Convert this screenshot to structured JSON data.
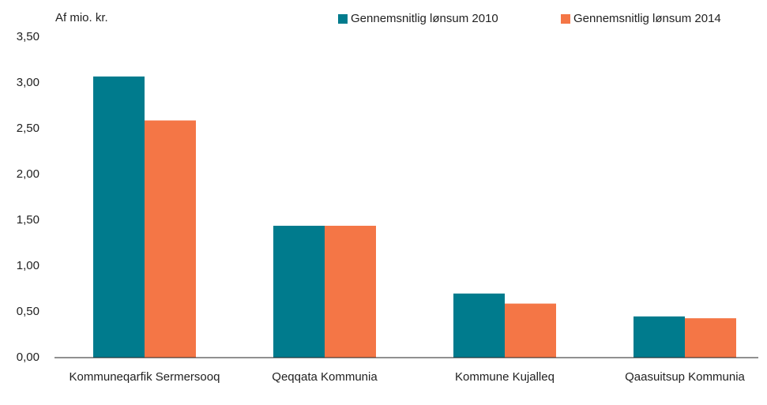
{
  "chart_data": {
    "type": "bar",
    "y_label": "Af mio. kr.",
    "categories": [
      "Kommuneqarfik Sermersooq",
      "Qeqqata Kommunia",
      "Kommune Kujalleq",
      "Qaasuitsup Kommunia"
    ],
    "series": [
      {
        "name": "Gennemsnitlig lønsum 2010",
        "color": "#007b8d",
        "values": [
          3.07,
          1.44,
          0.7,
          0.45
        ]
      },
      {
        "name": "Gennemsnitlig lønsum 2014",
        "color": "#f47646",
        "values": [
          2.59,
          1.44,
          0.59,
          0.43
        ]
      }
    ],
    "ylim": [
      0,
      3.5
    ],
    "yticks": [
      {
        "value": 0,
        "label": "0,00"
      },
      {
        "value": 0.5,
        "label": "0,50"
      },
      {
        "value": 1,
        "label": "1,00"
      },
      {
        "value": 1.5,
        "label": "1,50"
      },
      {
        "value": 2,
        "label": "2,00"
      },
      {
        "value": 2.5,
        "label": "2,50"
      },
      {
        "value": 3,
        "label": "3,00"
      },
      {
        "value": 3.5,
        "label": "3,50"
      }
    ],
    "grid": false,
    "legend": "top"
  }
}
